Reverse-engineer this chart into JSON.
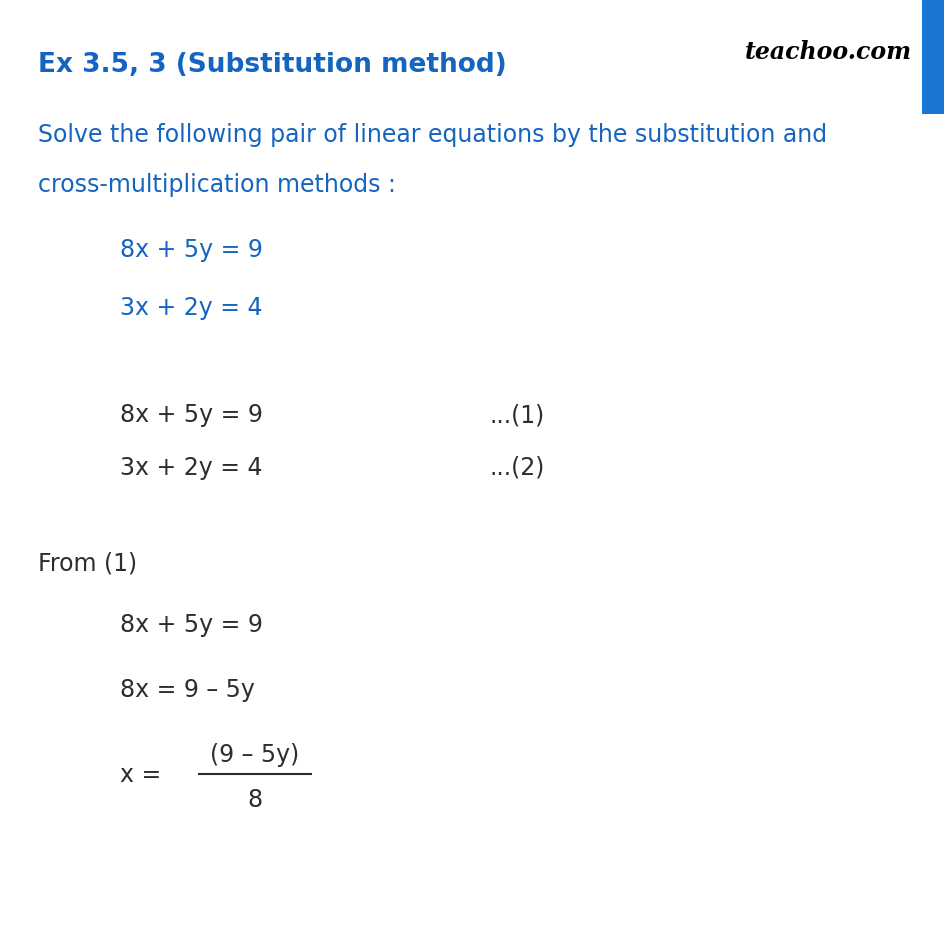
{
  "bg_color": "#ffffff",
  "title": "Ex 3.5, 3 (Substitution method)",
  "title_color": "#1565C0",
  "title_fontsize": 19,
  "teachoo_text": "teachoo.com",
  "blue_bar_color": "#1976D2",
  "intro_line1": "Solve the following pair of linear equations by the substitution and",
  "intro_line2": "cross-multiplication methods :",
  "intro_color": "#1565C0",
  "intro_fontsize": 17,
  "eq1_blue": "8x + 5y = 9",
  "eq2_blue": "3x + 2y = 4",
  "eq1_numbered": "8x + 5y = 9",
  "eq2_numbered": "3x + 2y = 4",
  "num1": "...(1)",
  "num2": "...(2)",
  "from1_text": "From (1)",
  "step1": "8x + 5y = 9",
  "step2": "8x = 9 – 5y",
  "step3_lhs": "x =",
  "step3_num": "(9 – 5y)",
  "step3_den": "8",
  "body_color": "#2d2d2d",
  "body_fontsize": 17,
  "eq_color": "#1565C0"
}
